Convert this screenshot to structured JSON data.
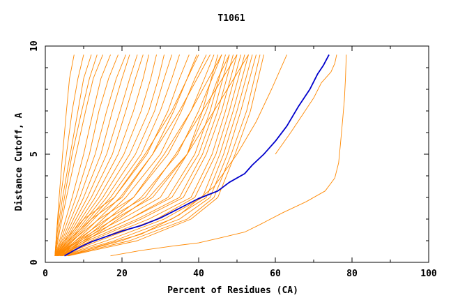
{
  "chart_data": {
    "type": "line",
    "title": "T1061",
    "xlabel": "Percent of Residues (CA)",
    "ylabel": "Distance Cutoff, A",
    "xlim": [
      0,
      100
    ],
    "ylim": [
      0,
      10
    ],
    "x_ticks": [
      0,
      20,
      40,
      60,
      80,
      100
    ],
    "y_ticks": [
      0,
      5,
      10
    ],
    "x_tick_labels": [
      "0",
      "20",
      "40",
      "60",
      "80",
      "100"
    ],
    "y_tick_labels": [
      "0",
      "5",
      "10"
    ],
    "grid": false,
    "legend": "none",
    "colors": {
      "highlight": "#0000cc",
      "ensemble": "#ff8800"
    },
    "highlight_series": {
      "x": [
        5,
        7,
        9,
        12,
        16,
        20,
        25,
        30,
        35,
        40,
        45,
        48,
        52,
        54,
        57,
        60,
        63,
        66,
        69,
        71,
        72.5,
        74
      ],
      "y": [
        0.3,
        0.5,
        0.7,
        0.95,
        1.2,
        1.45,
        1.7,
        2.05,
        2.5,
        2.95,
        3.3,
        3.7,
        4.1,
        4.5,
        5.0,
        5.6,
        6.3,
        7.2,
        8.0,
        8.7,
        9.1,
        9.6
      ]
    },
    "ensemble_series": [
      {
        "x": [
          2.5,
          3,
          3.6,
          4.5,
          5.5,
          6.3,
          7.5
        ],
        "y": [
          0.3,
          1.5,
          3.0,
          5.0,
          7.0,
          8.5,
          9.6
        ]
      },
      {
        "x": [
          2.5,
          3,
          4,
          5.5,
          7,
          8.5,
          10
        ],
        "y": [
          0.3,
          1.5,
          3.0,
          5.0,
          7.0,
          8.5,
          9.6
        ]
      },
      {
        "x": [
          2.5,
          3.2,
          4.5,
          6.5,
          8.5,
          10,
          12
        ],
        "y": [
          0.3,
          1.5,
          3.0,
          5.0,
          7.0,
          8.5,
          9.6
        ]
      },
      {
        "x": [
          2.5,
          3.5,
          5,
          7,
          9.5,
          11.5,
          13.5
        ],
        "y": [
          0.3,
          1.5,
          3.0,
          5.0,
          7.0,
          8.5,
          9.6
        ]
      },
      {
        "x": [
          2.6,
          3.8,
          5.5,
          8,
          10.5,
          12.5,
          15
        ],
        "y": [
          0.3,
          1.5,
          3.0,
          5.0,
          7.0,
          8.5,
          9.6
        ]
      },
      {
        "x": [
          2.6,
          4.5,
          7,
          10,
          12.5,
          14.5,
          17
        ],
        "y": [
          0.3,
          1.5,
          3.0,
          5.0,
          7.0,
          8.5,
          9.6
        ]
      },
      {
        "x": [
          2.7,
          5,
          8,
          11.5,
          14,
          16.5,
          19
        ],
        "y": [
          0.3,
          1.5,
          3.0,
          5.0,
          7.0,
          8.5,
          9.6
        ]
      },
      {
        "x": [
          2.7,
          5.5,
          9,
          13,
          16,
          18.5,
          21
        ],
        "y": [
          0.3,
          1.5,
          3.0,
          5.0,
          7.0,
          8.5,
          9.6
        ]
      },
      {
        "x": [
          2.8,
          6,
          10,
          14.5,
          17.5,
          20,
          22
        ],
        "y": [
          0.3,
          1.5,
          3.0,
          5.0,
          7.0,
          8.5,
          9.6
        ]
      },
      {
        "x": [
          2.9,
          6.5,
          11,
          16,
          19.5,
          22,
          24
        ],
        "y": [
          0.3,
          1.5,
          3.0,
          5.0,
          7.0,
          8.5,
          9.6
        ]
      },
      {
        "x": [
          3,
          7,
          12,
          17.5,
          21,
          23.5,
          25.5
        ],
        "y": [
          0.3,
          1.5,
          3.0,
          5.0,
          7.0,
          8.5,
          9.6
        ]
      },
      {
        "x": [
          3,
          7.5,
          13,
          19,
          23,
          25.5,
          27
        ],
        "y": [
          0.3,
          1.5,
          3.0,
          5.0,
          7.0,
          8.5,
          9.6
        ]
      },
      {
        "x": [
          3.1,
          8,
          14,
          20.5,
          25,
          27.5,
          29
        ],
        "y": [
          0.3,
          1.5,
          3.0,
          5.0,
          7.0,
          8.5,
          9.6
        ]
      },
      {
        "x": [
          3.2,
          8.5,
          15,
          22,
          27,
          29.5,
          31
        ],
        "y": [
          0.3,
          1.5,
          3.0,
          5.0,
          7.0,
          8.5,
          9.6
        ]
      },
      {
        "x": [
          3.3,
          9,
          16,
          23.5,
          28.5,
          31,
          33
        ],
        "y": [
          0.3,
          1.5,
          3.0,
          5.0,
          7.0,
          8.5,
          9.6
        ]
      },
      {
        "x": [
          3.4,
          9.5,
          17,
          25,
          30,
          33,
          35
        ],
        "y": [
          0.3,
          1.5,
          3.0,
          5.0,
          7.0,
          8.5,
          9.6
        ]
      },
      {
        "x": [
          3.5,
          10,
          18,
          26.5,
          32,
          35,
          37.5
        ],
        "y": [
          0.3,
          1.5,
          3.0,
          5.0,
          7.0,
          8.5,
          9.6
        ]
      },
      {
        "x": [
          3.6,
          11,
          19.5,
          28,
          33.5,
          37,
          39.5
        ],
        "y": [
          0.3,
          1.5,
          3.0,
          5.0,
          7.0,
          8.5,
          9.6
        ]
      },
      {
        "x": [
          3.8,
          12,
          21,
          30,
          35.5,
          39,
          42
        ],
        "y": [
          0.3,
          1.5,
          3.0,
          5.0,
          7.0,
          8.5,
          9.6
        ]
      },
      {
        "x": [
          4,
          13,
          23,
          32,
          38,
          41.5,
          44
        ],
        "y": [
          0.3,
          1.5,
          3.0,
          5.0,
          7.0,
          8.5,
          9.6
        ]
      },
      {
        "x": [
          4.2,
          14,
          25,
          34.5,
          40,
          43.5,
          46
        ],
        "y": [
          0.3,
          1.5,
          3.0,
          5.0,
          7.0,
          8.5,
          9.6
        ]
      },
      {
        "x": [
          4.5,
          15,
          27,
          37,
          42,
          45,
          48
        ],
        "y": [
          0.3,
          1.5,
          3.0,
          5.0,
          7.0,
          8.5,
          9.6
        ]
      },
      {
        "x": [
          3,
          9,
          20,
          30,
          37,
          41,
          45
        ],
        "y": [
          0.3,
          1.0,
          2.0,
          3.0,
          5.0,
          7.0,
          9.6
        ]
      },
      {
        "x": [
          3,
          10,
          22,
          32,
          39,
          43,
          47
        ],
        "y": [
          0.3,
          1.0,
          2.0,
          3.0,
          5.0,
          7.0,
          9.6
        ]
      },
      {
        "x": [
          3.2,
          10,
          22,
          33,
          40,
          44,
          48
        ],
        "y": [
          0.3,
          1.0,
          2.0,
          3.0,
          5.0,
          7.0,
          9.6
        ]
      },
      {
        "x": [
          3.5,
          11,
          24,
          35,
          41,
          45,
          49
        ],
        "y": [
          0.3,
          1.0,
          2.0,
          3.0,
          5.0,
          7.0,
          9.6
        ]
      },
      {
        "x": [
          3.5,
          12,
          25,
          36,
          42,
          46,
          50
        ],
        "y": [
          0.3,
          1.0,
          2.0,
          3.0,
          5.0,
          7.0,
          9.6
        ]
      },
      {
        "x": [
          3.8,
          13,
          27,
          38,
          43.5,
          47,
          51
        ],
        "y": [
          0.3,
          1.0,
          2.0,
          3.0,
          5.0,
          7.0,
          9.6
        ]
      },
      {
        "x": [
          4,
          14,
          29,
          39,
          44.5,
          48,
          52
        ],
        "y": [
          0.3,
          1.0,
          2.0,
          3.0,
          5.0,
          7.0,
          9.6
        ]
      },
      {
        "x": [
          4.3,
          16,
          31,
          41,
          45.5,
          49,
          53
        ],
        "y": [
          0.3,
          1.0,
          2.0,
          3.0,
          5.0,
          7.0,
          9.6
        ]
      },
      {
        "x": [
          4.5,
          18,
          33,
          42,
          46.5,
          50,
          54
        ],
        "y": [
          0.3,
          1.0,
          2.0,
          3.0,
          5.0,
          7.0,
          9.6
        ]
      },
      {
        "x": [
          5,
          20,
          35,
          43,
          47.5,
          51,
          55
        ],
        "y": [
          0.3,
          1.0,
          2.0,
          3.0,
          5.0,
          7.0,
          9.6
        ]
      },
      {
        "x": [
          5.5,
          22,
          37,
          44,
          48.5,
          52.5,
          56
        ],
        "y": [
          0.3,
          1.0,
          2.0,
          3.0,
          5.0,
          7.0,
          9.6
        ]
      },
      {
        "x": [
          6,
          24,
          38,
          45,
          49.5,
          53.5,
          57
        ],
        "y": [
          0.3,
          1.0,
          2.0,
          3.0,
          5.0,
          7.0,
          9.6
        ]
      },
      {
        "x": [
          2.5,
          5,
          10,
          18,
          26,
          33,
          40
        ],
        "y": [
          0.3,
          1.0,
          2.0,
          3.0,
          5.0,
          7.0,
          9.6
        ]
      },
      {
        "x": [
          2.5,
          6,
          12,
          20,
          28,
          35,
          43
        ],
        "y": [
          0.3,
          1.0,
          2.0,
          3.0,
          5.0,
          7.0,
          9.6
        ]
      },
      {
        "x": [
          2.8,
          7,
          14,
          23,
          31,
          38,
          46
        ],
        "y": [
          0.3,
          1.0,
          2.0,
          3.0,
          5.0,
          7.0,
          9.6
        ]
      },
      {
        "x": [
          3,
          8,
          16,
          26,
          34,
          41,
          50
        ],
        "y": [
          0.3,
          1.0,
          2.0,
          3.0,
          5.0,
          7.0,
          9.6
        ]
      },
      {
        "x": [
          3,
          8.5,
          18,
          28,
          37,
          44,
          53
        ],
        "y": [
          0.3,
          1.0,
          2.0,
          3.0,
          5.0,
          7.0,
          9.6
        ]
      },
      {
        "x": [
          6,
          15,
          25,
          35,
          44,
          50,
          55,
          59,
          63
        ],
        "y": [
          0.3,
          0.8,
          1.3,
          2.2,
          3.5,
          5.0,
          6.5,
          8.0,
          9.6
        ]
      },
      {
        "x": [
          17,
          25,
          33,
          40,
          46,
          52,
          56,
          62,
          68,
          73,
          75.5,
          76.5,
          77
        ],
        "y": [
          0.3,
          0.55,
          0.75,
          0.9,
          1.15,
          1.4,
          1.75,
          2.3,
          2.8,
          3.3,
          3.9,
          4.6,
          5.5
        ]
      },
      {
        "x": [
          77,
          77.5,
          78,
          78.3,
          78.5
        ],
        "y": [
          5.5,
          6.5,
          7.5,
          8.5,
          9.6
        ]
      },
      {
        "x": [
          60,
          64,
          67,
          70,
          72,
          74.5,
          75.5,
          76
        ],
        "y": [
          5.0,
          6.0,
          6.8,
          7.6,
          8.3,
          8.8,
          9.2,
          9.6
        ]
      }
    ]
  }
}
